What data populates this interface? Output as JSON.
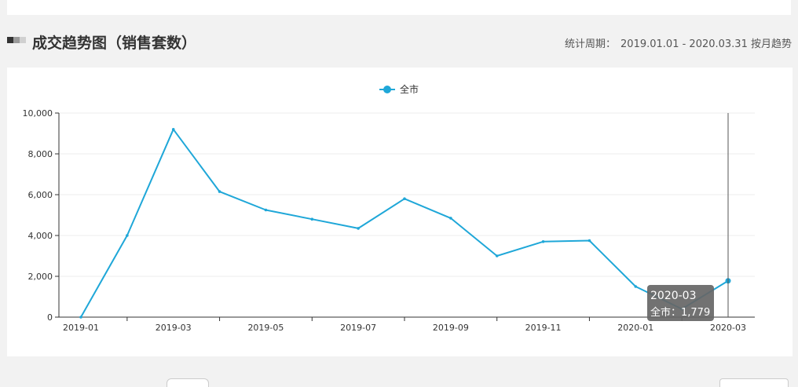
{
  "section": {
    "title": "成交趋势图（销售套数）",
    "period_label": "统计周期：",
    "period_value": "2019.01.01 - 2020.03.31 按月趋势"
  },
  "colors": {
    "series": "#1fa7d8",
    "axis": "#333333",
    "grid": "#eeeeee",
    "tooltip_bg": "#666666"
  },
  "chart_data": {
    "type": "line",
    "x": [
      "2019-01",
      "2019-02",
      "2019-03",
      "2019-04",
      "2019-05",
      "2019-06",
      "2019-07",
      "2019-08",
      "2019-09",
      "2019-10",
      "2019-11",
      "2019-12",
      "2020-01",
      "2020-02",
      "2020-03"
    ],
    "x_tick_labels": [
      "2019-01",
      "2019-03",
      "2019-05",
      "2019-07",
      "2019-09",
      "2019-11",
      "2020-01",
      "2020-03"
    ],
    "y_tick_labels": [
      "0",
      "2,000",
      "4,000",
      "6,000",
      "8,000",
      "10,000"
    ],
    "ylim": [
      0,
      10000
    ],
    "series": [
      {
        "name": "全市",
        "values": [
          0,
          4000,
          9200,
          6150,
          5250,
          4800,
          4350,
          5800,
          4850,
          3000,
          3700,
          3750,
          1500,
          400,
          1779
        ]
      }
    ],
    "legend": "top-center",
    "grid": true,
    "tooltip": {
      "x": "2020-03",
      "series": "全市",
      "value": "1,779"
    }
  }
}
